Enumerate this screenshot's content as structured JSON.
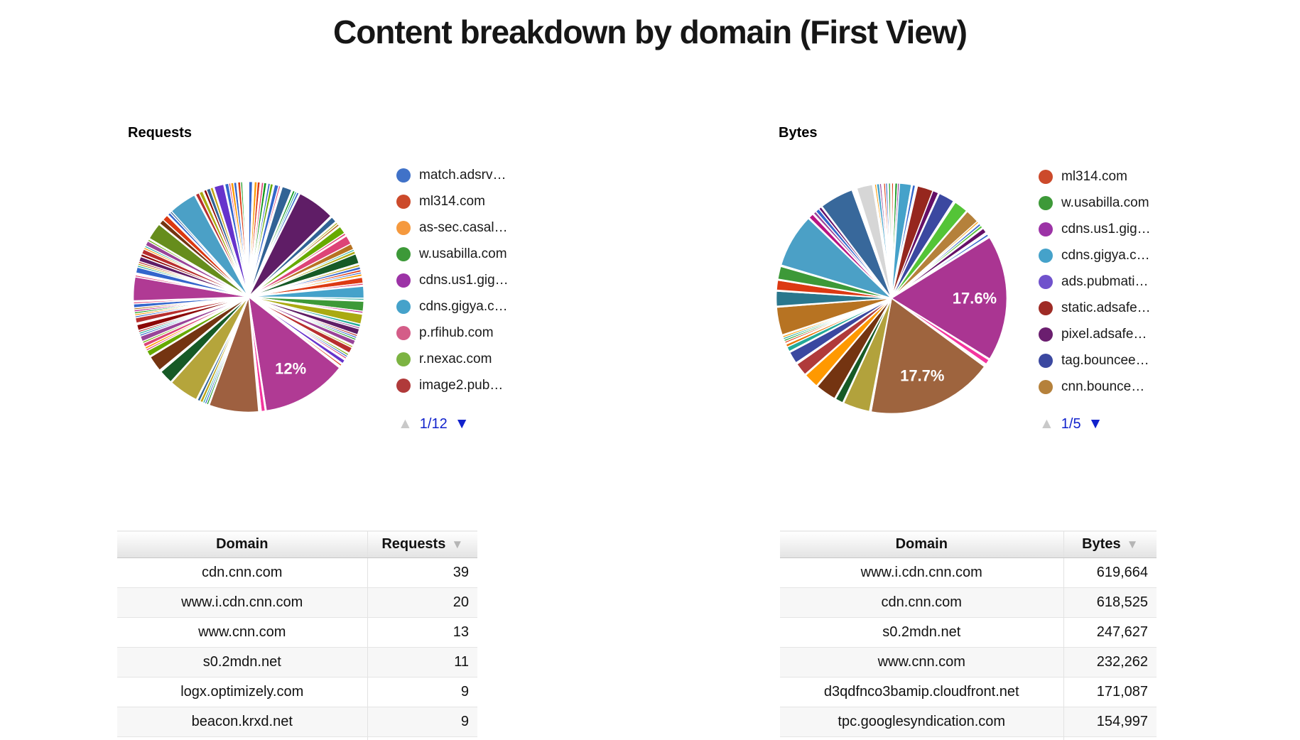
{
  "page": {
    "title": "Content breakdown by domain (First View)"
  },
  "icons": {
    "pager_up": "▲",
    "pager_down": "▼",
    "sort_desc": "▼"
  },
  "chart_data": [
    {
      "type": "pie",
      "title": "Requests",
      "legend_position": "right",
      "legend_page": "1/12",
      "legend_entries": [
        {
          "label": "match.adsrv…",
          "color": "#4072C8"
        },
        {
          "label": "ml314.com",
          "color": "#CC4A2B"
        },
        {
          "label": "as-sec.casal…",
          "color": "#F5993E"
        },
        {
          "label": "w.usabilla.com",
          "color": "#3D9938"
        },
        {
          "label": "cdns.us1.gig…",
          "color": "#9C33A6"
        },
        {
          "label": "cdns.gigya.c…",
          "color": "#45A2CA"
        },
        {
          "label": "p.rfihub.com",
          "color": "#D45D88"
        },
        {
          "label": "r.nexac.com",
          "color": "#7CB342"
        },
        {
          "label": "image2.pub…",
          "color": "#B03A3A"
        }
      ],
      "labeled_values": [
        {
          "label": "12%",
          "value_pct": 12
        }
      ],
      "slices": [
        [
          "#3366CC",
          2
        ],
        [
          "#FFFFFF",
          0.8
        ],
        [
          "#FF9900",
          1.5
        ],
        [
          "#DC3912",
          1.5
        ],
        [
          "#FFFFFF",
          0.6
        ],
        [
          "#DD4477",
          1.2
        ],
        [
          "#109618",
          1.5
        ],
        [
          "#FFFFFF",
          0.6
        ],
        [
          "#3366CC",
          1.2
        ],
        [
          "#66AA00",
          1.5
        ],
        [
          "#FFFFFF",
          0.6
        ],
        [
          "#3366CC",
          2.2
        ],
        [
          "#DD4477",
          1
        ],
        [
          "#FFFFFF",
          0.8
        ],
        [
          "#316395",
          5
        ],
        [
          "#FFFFFF",
          0.6
        ],
        [
          "#109618",
          1.2
        ],
        [
          "#22AA99",
          1
        ],
        [
          "#3366CC",
          1.2
        ],
        [
          "#FFFFFF",
          0.5
        ],
        [
          "#5F1D66",
          19
        ],
        [
          "#FFFFFF",
          0.7
        ],
        [
          "#316395",
          3
        ],
        [
          "#FFFFFF",
          0.5
        ],
        [
          "#AAAA11",
          1
        ],
        [
          "#B77322",
          1.2
        ],
        [
          "#FFFFFF",
          0.5
        ],
        [
          "#66AA00",
          4
        ],
        [
          "#DD4477",
          1.2
        ],
        [
          "#FFFFFF",
          0.5
        ],
        [
          "#DD4477",
          4.5
        ],
        [
          "#B77322",
          3
        ],
        [
          "#22AA99",
          1
        ],
        [
          "#AAAA11",
          1.5
        ],
        [
          "#165A26",
          5
        ],
        [
          "#FFFFFF",
          0.5
        ],
        [
          "#BEA413",
          1.2
        ],
        [
          "#3366CC",
          1.5
        ],
        [
          "#DC3912",
          1.2
        ],
        [
          "#3366CC",
          1
        ],
        [
          "#FF9900",
          1.2
        ],
        [
          "#FFFFFF",
          0.5
        ],
        [
          "#DC3912",
          3
        ],
        [
          "#DD4477",
          1
        ],
        [
          "#FFFFFF",
          0.5
        ],
        [
          "#45A2CA",
          6
        ],
        [
          "#22AA99",
          1
        ],
        [
          "#FFFFFF",
          0.5
        ],
        [
          "#3D9938",
          5
        ],
        [
          "#B91383",
          1
        ],
        [
          "#FFFFFF",
          0.5
        ],
        [
          "#AAAA11",
          5
        ],
        [
          "#22AA99",
          1.5
        ],
        [
          "#994499",
          1
        ],
        [
          "#5F1D66",
          3
        ],
        [
          "#B82E2E",
          1
        ],
        [
          "#3366CC",
          1
        ],
        [
          "#109618",
          1
        ],
        [
          "#994499",
          2.5
        ],
        [
          "#FFFFFF",
          0.5
        ],
        [
          "#AAAA11",
          1
        ],
        [
          "#B82E2E",
          3
        ],
        [
          "#FFFFFF",
          0.5
        ],
        [
          "#66AA00",
          1
        ],
        [
          "#3366CC",
          1
        ],
        [
          "#DD4477",
          1
        ],
        [
          "#FFFFFF",
          0.7
        ],
        [
          "#6633CC",
          2
        ],
        [
          "#FFFFFF",
          0.6
        ],
        [
          "#DC3912",
          1
        ],
        [
          "#FFFFFF",
          1
        ],
        [
          "#B03A94",
          43.2,
          "12%"
        ],
        [
          "#FFFFFF",
          0.5
        ],
        [
          "#F4359E",
          2
        ],
        [
          "#FFFFFF",
          1.3
        ],
        [
          "#9E6040",
          25
        ],
        [
          "#FFFFFF",
          0.5
        ],
        [
          "#109618",
          1
        ],
        [
          "#3366CC",
          1
        ],
        [
          "#22AA99",
          1
        ],
        [
          "#BEA413",
          1.5
        ],
        [
          "#316395",
          1.5
        ],
        [
          "#FFFFFF",
          0.5
        ],
        [
          "#B5A53B",
          15
        ],
        [
          "#FFFFFF",
          0.5
        ],
        [
          "#165A26",
          7
        ],
        [
          "#FFFFFF",
          1
        ],
        [
          "#743411",
          8
        ],
        [
          "#FFFFFF",
          0.5
        ],
        [
          "#66AA00",
          3
        ],
        [
          "#DD4477",
          1
        ],
        [
          "#FF9900",
          1.2
        ],
        [
          "#DD4477",
          2
        ],
        [
          "#66AA00",
          1
        ],
        [
          "#994499",
          2.8
        ],
        [
          "#3366CC",
          1
        ],
        [
          "#22AA99",
          1
        ],
        [
          "#B82E2E",
          1
        ],
        [
          "#8B0707",
          3
        ],
        [
          "#FFFFFF",
          0.8
        ],
        [
          "#B82E2E",
          2.7
        ],
        [
          "#3366CC",
          1
        ],
        [
          "#FF9900",
          1
        ],
        [
          "#109618",
          1
        ],
        [
          "#B91383",
          1
        ],
        [
          "#B77322",
          1
        ],
        [
          "#3366CC",
          2
        ],
        [
          "#DD4477",
          1
        ],
        [
          "#FFFFFF",
          0.5
        ],
        [
          "#B03A94",
          12
        ],
        [
          "#DD4477",
          1
        ],
        [
          "#FFFFFF",
          1
        ],
        [
          "#3366CC",
          3
        ],
        [
          "#22AA99",
          1
        ],
        [
          "#BEA413",
          1
        ],
        [
          "#B82E2E",
          1
        ],
        [
          "#5F1D66",
          2.5
        ],
        [
          "#8B0707",
          1.5
        ],
        [
          "#B82E2E",
          2.5
        ],
        [
          "#FF9900",
          1
        ],
        [
          "#22AA99",
          1
        ],
        [
          "#994499",
          2.5
        ],
        [
          "#66AA00",
          1
        ],
        [
          "#FFFFFF",
          0.5
        ],
        [
          "#668D1C",
          8.5
        ],
        [
          "#FFFFFF",
          0.5
        ],
        [
          "#743411",
          2.5
        ],
        [
          "#DC3912",
          3
        ],
        [
          "#FFFFFF",
          0.5
        ],
        [
          "#3366CC",
          1.5
        ],
        [
          "#316395",
          1
        ],
        [
          "#4BA0C6",
          14
        ],
        [
          "#FFFFFF",
          0.5
        ],
        [
          "#B82E2E",
          2
        ],
        [
          "#AAAA11",
          2
        ],
        [
          "#FFFFFF",
          0.5
        ],
        [
          "#8B0707",
          1.5
        ],
        [
          "#316395",
          2
        ],
        [
          "#BEA413",
          1.5
        ],
        [
          "#FFFFFF",
          0.5
        ],
        [
          "#6633CC",
          5
        ],
        [
          "#FFFFFF",
          0.5
        ],
        [
          "#3366CC",
          2
        ],
        [
          "#DD4477",
          1
        ],
        [
          "#FF9900",
          1.5
        ],
        [
          "#3366CC",
          1.5
        ],
        [
          "#FFFFFF",
          0.5
        ],
        [
          "#DC3912",
          1.5
        ],
        [
          "#109618",
          1
        ],
        [
          "#FFFFFF",
          3
        ]
      ]
    },
    {
      "type": "pie",
      "title": "Bytes",
      "legend_position": "right",
      "legend_page": "1/5",
      "legend_entries": [
        {
          "label": "ml314.com",
          "color": "#CC4A2B"
        },
        {
          "label": "w.usabilla.com",
          "color": "#3D9938"
        },
        {
          "label": "cdns.us1.gig…",
          "color": "#9C33A6"
        },
        {
          "label": "cdns.gigya.c…",
          "color": "#45A2CA"
        },
        {
          "label": "ads.pubmati…",
          "color": "#7052CC"
        },
        {
          "label": "static.adsafe…",
          "color": "#9E2B25"
        },
        {
          "label": "pixel.adsafe…",
          "color": "#6B1E6F"
        },
        {
          "label": "tag.bouncee…",
          "color": "#3B48A0"
        },
        {
          "label": "cnn.bounce…",
          "color": "#B5813B"
        }
      ],
      "labeled_values": [
        {
          "label": "17.6%",
          "value_pct": 17.6
        },
        {
          "label": "17.7%",
          "value_pct": 17.7
        }
      ],
      "slices": [
        [
          "#DC3912",
          1
        ],
        [
          "#FFFFFF",
          0.7
        ],
        [
          "#109618",
          1.3
        ],
        [
          "#994499",
          1
        ],
        [
          "#45A2CA",
          6
        ],
        [
          "#FFFFFF",
          0.5
        ],
        [
          "#3366CC",
          1.5
        ],
        [
          "#FFFFFF",
          1
        ],
        [
          "#96271E",
          8
        ],
        [
          "#651067",
          3
        ],
        [
          "#FFFFFF",
          0.5
        ],
        [
          "#3B48A0",
          8
        ],
        [
          "#FFFFFF",
          1
        ],
        [
          "#54C437",
          7
        ],
        [
          "#FFFFFF",
          0.5
        ],
        [
          "#B5813B",
          7
        ],
        [
          "#FF9900",
          1
        ],
        [
          "#FFFFFF",
          0.5
        ],
        [
          "#3366CC",
          1.2
        ],
        [
          "#54C437",
          1.3
        ],
        [
          "#FFFFFF",
          0.5
        ],
        [
          "#651067",
          2.5
        ],
        [
          "#FFFFFF",
          1
        ],
        [
          "#3366CC",
          1.2
        ],
        [
          "#FFFFFF",
          0.8
        ],
        [
          "#AA3592",
          63.4,
          "17.6%"
        ],
        [
          "#FFFFFF",
          0.6
        ],
        [
          "#F4359E",
          2.5
        ],
        [
          "#FFFFFF",
          1.5
        ],
        [
          "#9E643E",
          63.7,
          "17.7%"
        ],
        [
          "#FFFFFF",
          0.8
        ],
        [
          "#B2A23C",
          13.5
        ],
        [
          "#FFFFFF",
          0.5
        ],
        [
          "#165A26",
          4
        ],
        [
          "#FFFFFF",
          0.5
        ],
        [
          "#743411",
          10.5
        ],
        [
          "#FFFFFF",
          0.5
        ],
        [
          "#FF9900",
          7.5
        ],
        [
          "#FFFFFF",
          0.5
        ],
        [
          "#B03A3A",
          6.5
        ],
        [
          "#FFFFFF",
          0.8
        ],
        [
          "#3B48A0",
          6
        ],
        [
          "#FFFFFF",
          0.5
        ],
        [
          "#22AA99",
          2.5
        ],
        [
          "#E67300",
          1.5
        ],
        [
          "#FFFFFF",
          0.5
        ],
        [
          "#DC3912",
          1
        ],
        [
          "#109618",
          1
        ],
        [
          "#22AA99",
          1
        ],
        [
          "#FF9900",
          1
        ],
        [
          "#FFFFFF",
          0.5
        ],
        [
          "#B77322",
          14
        ],
        [
          "#FFFFFF",
          0.5
        ],
        [
          "#2A778D",
          7.5
        ],
        [
          "#FFFFFF",
          0.5
        ],
        [
          "#DC3912",
          5
        ],
        [
          "#FFFFFF",
          0.5
        ],
        [
          "#3D9938",
          6.5
        ],
        [
          "#FFFFFF",
          0.7
        ],
        [
          "#4BA0C6",
          27
        ],
        [
          "#FFFFFF",
          0.5
        ],
        [
          "#B91383",
          2.5
        ],
        [
          "#FFFFFF",
          0.5
        ],
        [
          "#994499",
          1.5
        ],
        [
          "#3366CC",
          2
        ],
        [
          "#651067",
          1.5
        ],
        [
          "#FFFFFF",
          0.5
        ],
        [
          "#38689B",
          17
        ],
        [
          "#FFFFFF",
          2.5
        ],
        [
          "#D6D6D6",
          8
        ],
        [
          "#FFFFFF",
          1
        ],
        [
          "#FF9900",
          1
        ],
        [
          "#45A2CA",
          1.5
        ],
        [
          "#994499",
          1
        ],
        [
          "#FFFFFF",
          1
        ],
        [
          "#DC3912",
          1
        ],
        [
          "#3366CC",
          1
        ],
        [
          "#FFFFFF",
          0.5
        ],
        [
          "#109618",
          1
        ],
        [
          "#FFFFFF",
          0.5
        ]
      ]
    }
  ],
  "tables": [
    {
      "headers": [
        "Domain",
        "Requests"
      ],
      "sorted_by": "Requests",
      "rows": [
        [
          "cdn.cnn.com",
          "39"
        ],
        [
          "www.i.cdn.cnn.com",
          "20"
        ],
        [
          "www.cnn.com",
          "13"
        ],
        [
          "s0.2mdn.net",
          "11"
        ],
        [
          "logx.optimizely.com",
          "9"
        ],
        [
          "beacon.krxd.net",
          "9"
        ]
      ]
    },
    {
      "headers": [
        "Domain",
        "Bytes"
      ],
      "sorted_by": "Bytes",
      "rows": [
        [
          "www.i.cdn.cnn.com",
          "619,664"
        ],
        [
          "cdn.cnn.com",
          "618,525"
        ],
        [
          "s0.2mdn.net",
          "247,627"
        ],
        [
          "www.cnn.com",
          "232,262"
        ],
        [
          "d3qdfnco3bamip.cloudfront.net",
          "171,087"
        ],
        [
          "tpc.googlesyndication.com",
          "154,997"
        ]
      ]
    }
  ]
}
